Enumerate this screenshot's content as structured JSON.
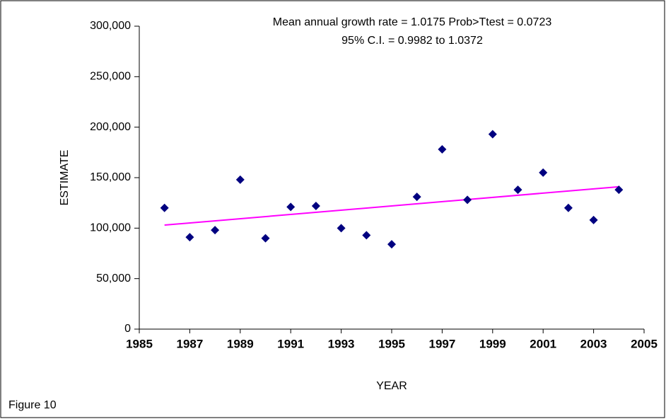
{
  "chart_data": {
    "type": "scatter",
    "title": "Mean annual growth rate = 1.0175  Prob>Ttest = 0.0723",
    "subtitle": "95% C.I. = 0.9982 to 1.0372",
    "x_label": "YEAR",
    "y_label": "ESTIMATE",
    "caption": "Figure 10",
    "x": [
      1986,
      1987,
      1988,
      1989,
      1990,
      1991,
      1992,
      1993,
      1994,
      1995,
      1996,
      1997,
      1998,
      1999,
      2000,
      2001,
      2002,
      2003,
      2004
    ],
    "values": [
      120000,
      91000,
      98000,
      148000,
      90000,
      121000,
      122000,
      100000,
      93000,
      84000,
      131000,
      178000,
      128000,
      193000,
      138000,
      155000,
      120000,
      108000,
      138000
    ],
    "color": "#000080",
    "trend": {
      "x": [
        1986,
        2004
      ],
      "values": [
        103000,
        141000
      ],
      "color": "#ff00ff"
    },
    "xlim": [
      1985,
      2005
    ],
    "xticks": [
      1985,
      1987,
      1989,
      1991,
      1993,
      1995,
      1997,
      1999,
      2001,
      2003,
      2005
    ],
    "ylim": [
      0,
      300000
    ],
    "yticks": [
      0,
      {
        "value": 50000,
        "label": "50,000"
      },
      {
        "value": 100000,
        "label": "100,000"
      },
      {
        "value": 150000,
        "label": "150,000"
      },
      {
        "value": 200000,
        "label": "200,000"
      },
      {
        "value": 250000,
        "label": "250,000"
      },
      {
        "value": 300000,
        "label": "300,000"
      }
    ]
  }
}
